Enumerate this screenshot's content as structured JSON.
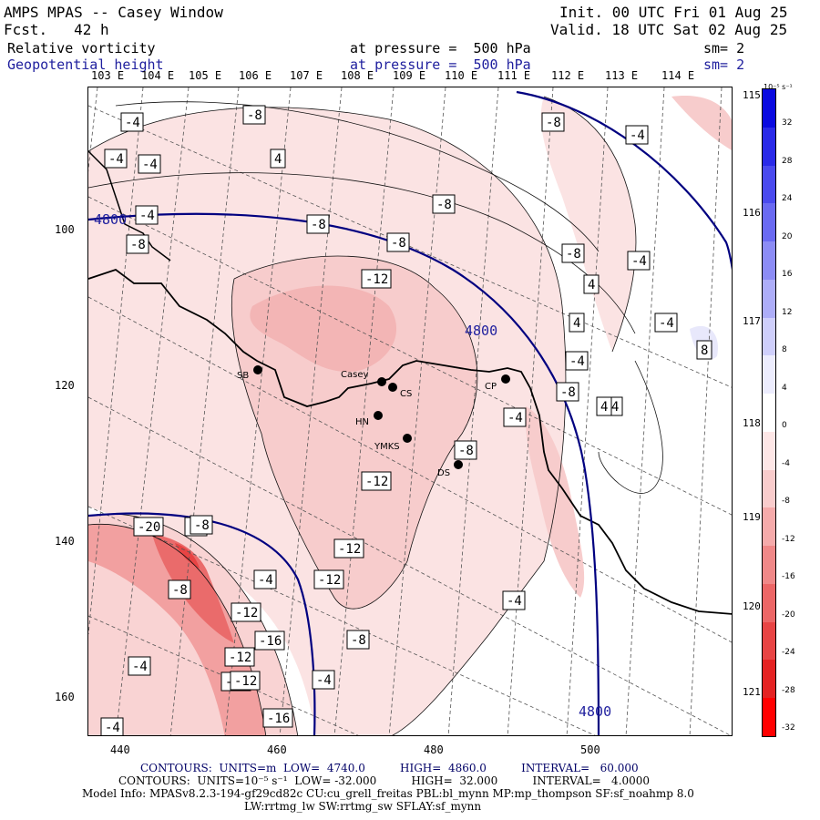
{
  "header": {
    "title": "AMPS MPAS -- Casey Window",
    "forecast": "Fcst.   42 h",
    "init": "Init. 00 UTC Fri 01 Aug 25",
    "valid": "Valid. 18 UTC Sat 02 Aug 25",
    "field1_name": "Relative vorticity",
    "field1_level": "at pressure =  500 hPa",
    "field1_sm": "sm= 2",
    "field2_name": "Geopotential height",
    "field2_level": "at pressure =  500 hPa",
    "field2_sm": "sm= 2"
  },
  "top_lon_labels": [
    "103 E",
    "104 E",
    "105 E",
    "106 E",
    "107 E",
    "108 E",
    "109 E",
    "110 E",
    "111 E",
    "112 E",
    "113 E",
    "114 E"
  ],
  "right_lon_labels": [
    "115 E",
    "116 E",
    "117 E",
    "118 E",
    "119 E",
    "120 E",
    "121 E"
  ],
  "x_axis": [
    "440",
    "460",
    "480",
    "500"
  ],
  "y_axis": [
    "100",
    "120",
    "140",
    "160"
  ],
  "colorbar": {
    "unit": "10⁻⁵ s⁻¹",
    "labels": [
      "32",
      "28",
      "24",
      "20",
      "16",
      "12",
      "8",
      "4",
      "0",
      "-4",
      "-8",
      "-12",
      "-16",
      "-20",
      "-24",
      "-28",
      "-32"
    ],
    "colors": [
      "#0a0ae0",
      "#2a2ae8",
      "#4a4aee",
      "#6a6af2",
      "#8c8cf5",
      "#adadf8",
      "#cfcffb",
      "#ececfd",
      "#ffffff",
      "#fde6e6",
      "#f9cccc",
      "#f5aaaa",
      "#f08888",
      "#ec6666",
      "#e84444",
      "#e42222",
      "#ff0000"
    ]
  },
  "stations": [
    {
      "name": "SB"
    },
    {
      "name": "Casey"
    },
    {
      "name": "CS"
    },
    {
      "name": "HN"
    },
    {
      "name": "YMKS"
    },
    {
      "name": "DS"
    },
    {
      "name": "CP"
    }
  ],
  "height_contour_labels": [
    "4800",
    "4800",
    "4800"
  ],
  "vort_labels": [
    "-4",
    "-4",
    "-4",
    "-4",
    "-8",
    "-8",
    "-8",
    "-8",
    "-8",
    "-8",
    "4",
    "-4",
    "-8",
    "-12",
    "-4",
    "4",
    "4",
    "-4",
    "-4",
    "-8",
    "-12",
    "-12",
    "-12",
    "-8",
    "-8",
    "-4",
    "-8",
    "-12",
    "-16",
    "-20",
    "-8",
    "-4",
    "-16",
    "-12",
    "-12",
    "-16",
    "-4",
    "-8",
    "-4",
    "-4",
    "8",
    "4",
    "-4",
    "4"
  ],
  "footer": {
    "line1": "CONTOURS:  UNITS=m  LOW=  4740.0          HIGH=  4860.0          INTERVAL=   60.000",
    "line2": "CONTOURS:  UNITS=10⁻⁵ s⁻¹  LOW= -32.000          HIGH=  32.000          INTERVAL=   4.0000",
    "line3": "Model Info: MPASv8.2.3-194-gf29cd82c CU:cu_grell_freitas PBL:bl_mynn MP:mp_thompson SF:sf_noahmp 8.0",
    "line4": "LW:rrtmg_lw SW:rrtmg_sw SFLAY:sf_mynn"
  }
}
